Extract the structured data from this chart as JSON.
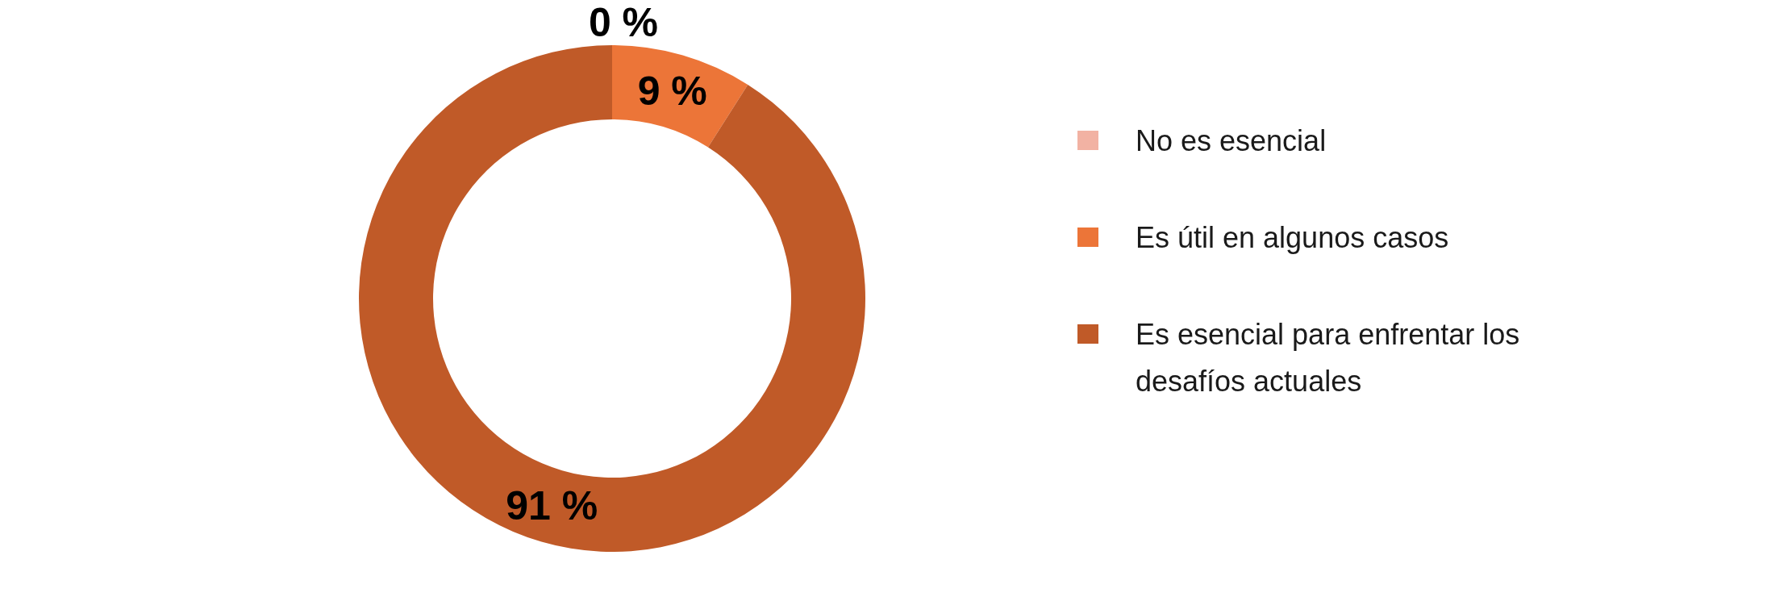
{
  "chart_data": {
    "type": "donut",
    "categories": [
      "No es esencial",
      "Es útil en algunos casos",
      "Es esencial para enfrentar los desafíos actuales"
    ],
    "values": [
      0,
      9,
      91
    ],
    "colors": [
      "#f2b2a3",
      "#ec7538",
      "#c05a28"
    ],
    "value_labels": [
      "0 %",
      "9 %",
      "91 %"
    ],
    "legend": "right"
  }
}
